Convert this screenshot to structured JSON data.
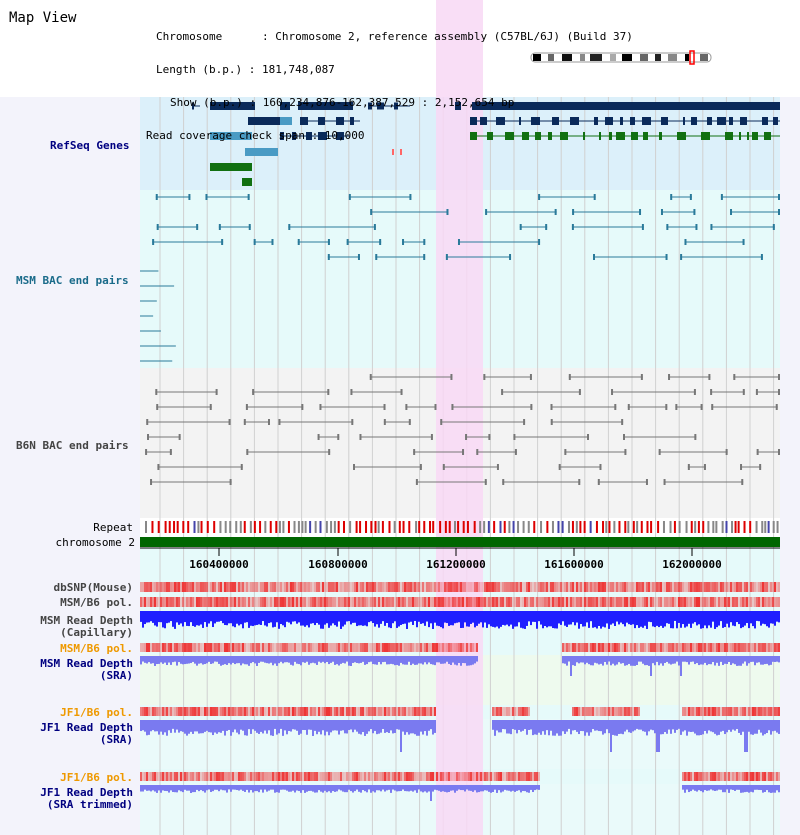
{
  "view_title": "Map View",
  "info": {
    "chromosome": "Chromosome      : Chromosome 2, reference assembly (C57BL/6J) (Build 37)",
    "length": "Length (b.p.) : 181,748,087",
    "show": "Show (b.p.) : 160,234,876-162,387,529 : 2,152,654 bp",
    "coverage": "Read coverage check span : 10,000"
  },
  "tracks": {
    "refseq": "RefSeq Genes",
    "msm_bac": "MSM BAC end pairs",
    "b6n_bac": "B6N BAC end pairs",
    "repeat": "Repeat",
    "chromosome": "chromosome 2",
    "dbsnp": "dbSNP(Mouse)",
    "msm_b6_pol_1": "MSM/B6 pol.",
    "msm_depth_cap_1": "MSM Read Depth",
    "msm_depth_cap_2": "(Capillary)",
    "msm_b6_pol_2": "MSM/B6 pol.",
    "msm_depth_sra_1": "MSM Read Depth",
    "msm_depth_sra_2": "(SRA)",
    "jf1_b6_pol_1": "JF1/B6 pol.",
    "jf1_depth_sra_1": "JF1 Read Depth",
    "jf1_depth_sra_2": "(SRA)",
    "jf1_b6_pol_2": "JF1/B6 pol.",
    "jf1_depth_trim_1": "JF1 Read Depth",
    "jf1_depth_trim_2": "(SRA trimmed)"
  },
  "axis": {
    "ticks": [
      "160400000",
      "160800000",
      "161200000",
      "161600000",
      "162000000"
    ]
  },
  "colors": {
    "refseq_bg": "#dcf0fa",
    "msm_bac_bg": "#e6fafa",
    "b6n_bg": "#f3f3f3",
    "highlight": "#f8d8f4",
    "refseq_dark": "#0a2a5a",
    "refseq_light": "#4a9bc4",
    "refseq_green": "#117011",
    "msm_bac_line": "#2a7a9a",
    "b6n_line": "#777777",
    "chromosome_bar": "#006600",
    "capillary_depth": "#1f1fff",
    "sra_depth": "#7a7af0",
    "pol_red": "#ee3333",
    "label_blue": "#000080",
    "label_orange": "#ee9900",
    "label_gray": "#444444",
    "label_teal": "#1a6b8a"
  }
}
